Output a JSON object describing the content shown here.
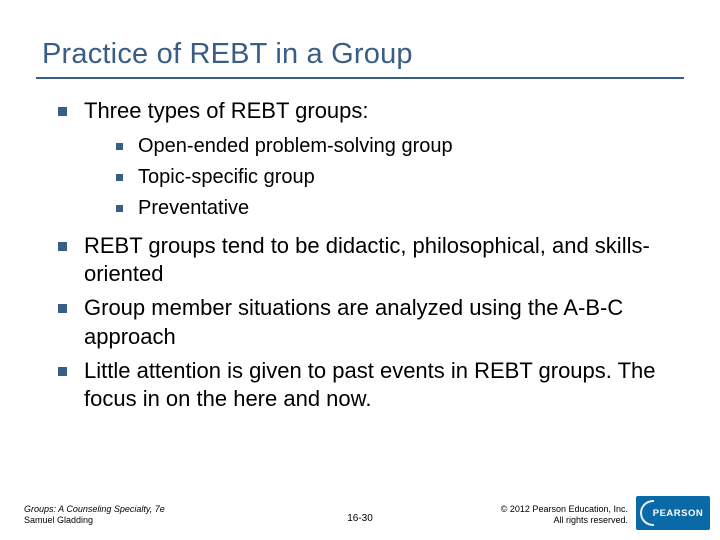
{
  "title": "Practice of REBT in a Group",
  "bullets": {
    "b1": "Three types of REBT groups:",
    "sub": {
      "s1": "Open-ended problem-solving group",
      "s2": "Topic-specific group",
      "s3": "Preventative"
    },
    "b2": "REBT groups tend to be didactic, philosophical, and skills-oriented",
    "b3": "Group member situations are analyzed using the A-B-C approach",
    "b4": "Little attention is given to past events in REBT groups. The focus in on the here and now."
  },
  "footer": {
    "left_line1": "Groups: A Counseling Specialty, 7e",
    "left_line2": "Samuel Gladding",
    "center": "16-30",
    "right_line1": "© 2012 Pearson Education, Inc.",
    "right_line2": "All rights reserved.",
    "logo_text": "PEARSON"
  },
  "colors": {
    "title_color": "#385e85",
    "bullet_color": "#385e85",
    "logo_bg": "#0a6aa8",
    "background": "#ffffff"
  },
  "typography": {
    "title_fontsize": 29,
    "body_fontsize": 22,
    "sub_fontsize": 20,
    "footer_fontsize": 9
  }
}
